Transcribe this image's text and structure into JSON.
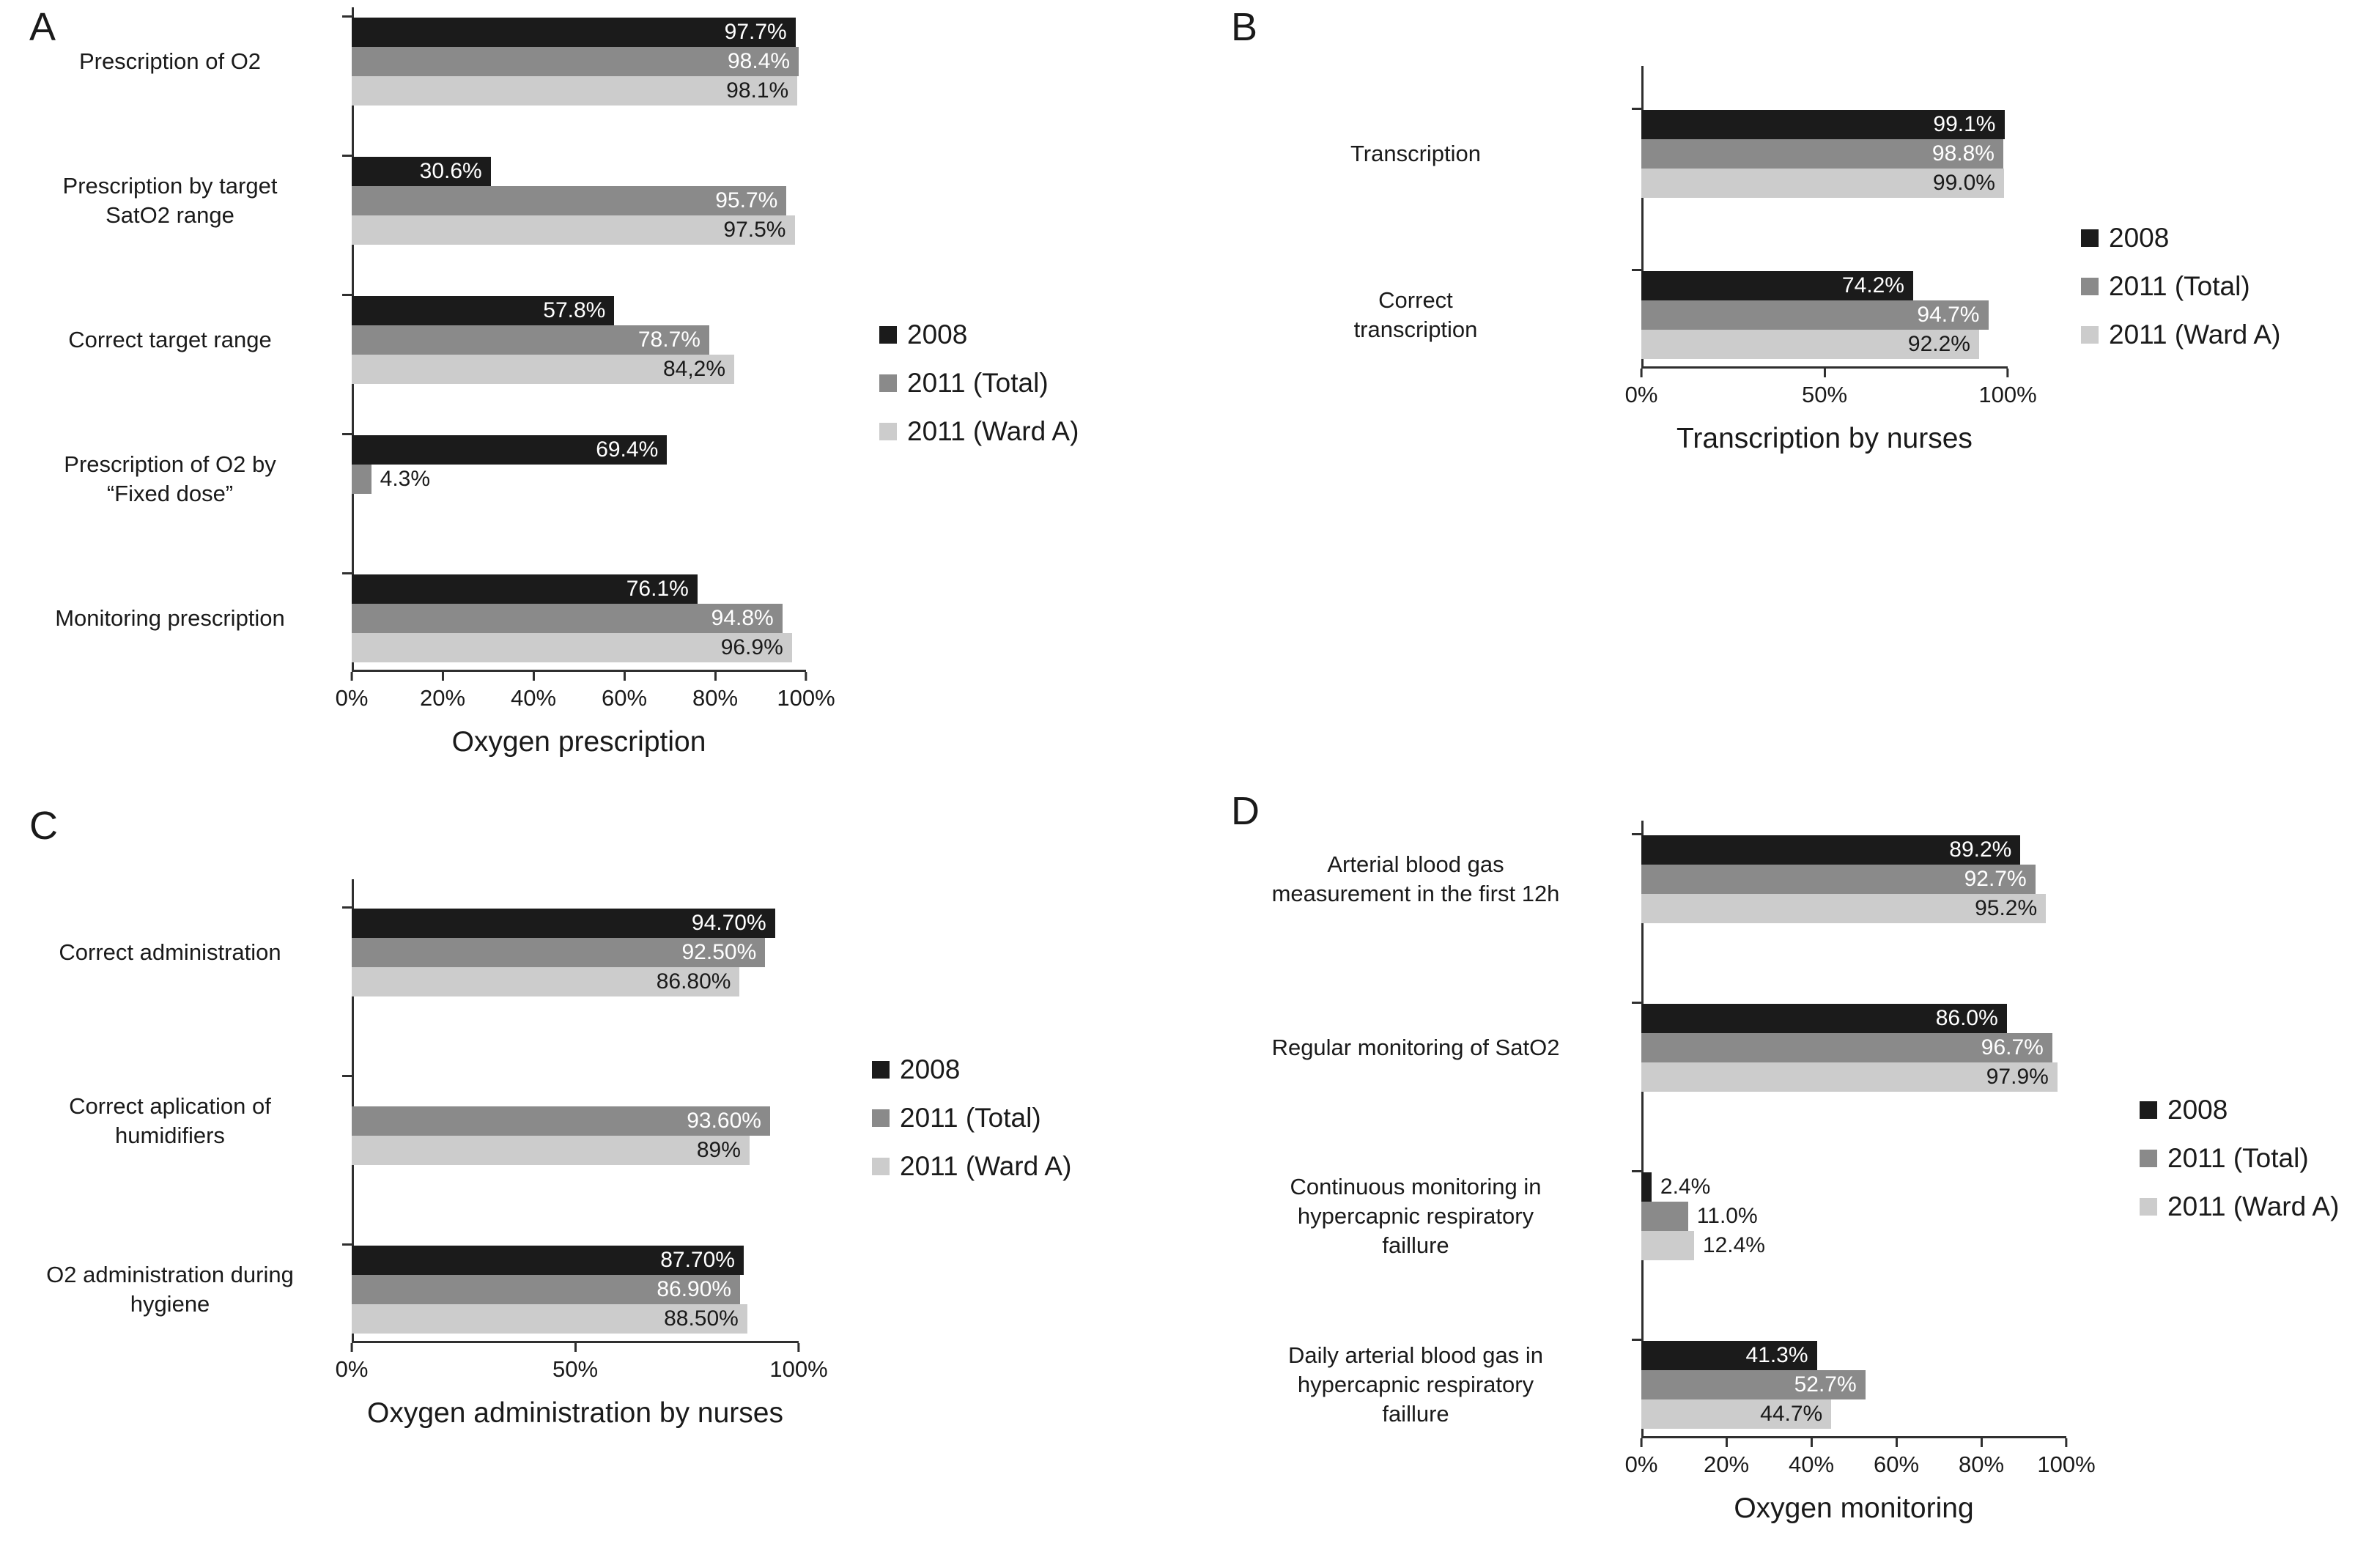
{
  "figure": {
    "background": "#ffffff"
  },
  "legend": {
    "items": [
      {
        "label": "2008",
        "color": "#1b1b1b"
      },
      {
        "label": "2011 (Total)",
        "color": "#8a8a8a"
      },
      {
        "label": "2011 (Ward A)",
        "color": "#cccccc"
      }
    ]
  },
  "chart_data": [
    {
      "id": "A",
      "panel_letter": "A",
      "type": "bar",
      "orientation": "horizontal",
      "title": "",
      "xlabel": "Oxygen prescription",
      "xlim": [
        0,
        100
      ],
      "x_ticks": [
        "0%",
        "20%",
        "40%",
        "60%",
        "80%",
        "100%"
      ],
      "grid": false,
      "legend_position": "right",
      "series_names": [
        "2008",
        "2011 (Total)",
        "2011 (Ward A)"
      ],
      "groups": [
        {
          "category": "Prescription of O2",
          "values": [
            97.7,
            98.4,
            98.1
          ],
          "value_labels": [
            "97.7%",
            "98.4%",
            "98.1%"
          ]
        },
        {
          "category": "Prescription by target\nSatO2 range",
          "values": [
            30.6,
            95.7,
            97.5
          ],
          "value_labels": [
            "30.6%",
            "95.7%",
            "97.5%"
          ]
        },
        {
          "category": "Correct target range",
          "values": [
            57.8,
            78.7,
            84.2
          ],
          "value_labels": [
            "57.8%",
            "78.7%",
            "84,2%"
          ]
        },
        {
          "category": "Prescription of O2 by\n“Fixed dose”",
          "values": [
            69.4,
            4.3,
            null
          ],
          "value_labels": [
            "69.4%",
            "4.3%",
            ""
          ]
        },
        {
          "category": "Monitoring prescription",
          "values": [
            76.1,
            94.8,
            96.9
          ],
          "value_labels": [
            "76.1%",
            "94.8%",
            "96.9%"
          ]
        }
      ]
    },
    {
      "id": "B",
      "panel_letter": "B",
      "type": "bar",
      "orientation": "horizontal",
      "title": "",
      "xlabel": "Transcription by nurses",
      "xlim": [
        0,
        100
      ],
      "x_ticks": [
        "0%",
        "50%",
        "100%"
      ],
      "grid": false,
      "legend_position": "right",
      "series_names": [
        "2008",
        "2011 (Total)",
        "2011 (Ward A)"
      ],
      "groups": [
        {
          "category": "Transcription",
          "values": [
            99.1,
            98.8,
            99.0
          ],
          "value_labels": [
            "99.1%",
            "98.8%",
            "99.0%"
          ]
        },
        {
          "category": "Correct\ntranscription",
          "values": [
            74.2,
            94.7,
            92.2
          ],
          "value_labels": [
            "74.2%",
            "94.7%",
            "92.2%"
          ]
        }
      ]
    },
    {
      "id": "C",
      "panel_letter": "C",
      "type": "bar",
      "orientation": "horizontal",
      "title": "",
      "xlabel": "Oxygen administration by nurses",
      "xlim": [
        0,
        100
      ],
      "x_ticks": [
        "0%",
        "50%",
        "100%"
      ],
      "grid": false,
      "legend_position": "right",
      "series_names": [
        "2008",
        "2011 (Total)",
        "2011 (Ward A)"
      ],
      "groups": [
        {
          "category": "Correct administration",
          "values": [
            94.7,
            92.5,
            86.8
          ],
          "value_labels": [
            "94.70%",
            "92.50%",
            "86.80%"
          ]
        },
        {
          "category": "Correct aplication of\nhumidifiers",
          "values": [
            null,
            93.6,
            89
          ],
          "value_labels": [
            "",
            "93.60%",
            "89%"
          ]
        },
        {
          "category": "O2 administration during\nhygiene",
          "values": [
            87.7,
            86.9,
            88.5
          ],
          "value_labels": [
            "87.70%",
            "86.90%",
            "88.50%"
          ]
        }
      ]
    },
    {
      "id": "D",
      "panel_letter": "D",
      "type": "bar",
      "orientation": "horizontal",
      "title": "",
      "xlabel": "Oxygen monitoring",
      "xlim": [
        0,
        100
      ],
      "x_ticks": [
        "0%",
        "20%",
        "40%",
        "60%",
        "80%",
        "100%"
      ],
      "grid": false,
      "legend_position": "right",
      "series_names": [
        "2008",
        "2011 (Total)",
        "2011 (Ward A)"
      ],
      "groups": [
        {
          "category": "Arterial blood gas\nmeasurement in the first 12h",
          "values": [
            89.2,
            92.7,
            95.2
          ],
          "value_labels": [
            "89.2%",
            "92.7%",
            "95.2%"
          ]
        },
        {
          "category": "Regular monitoring of SatO2",
          "values": [
            86.0,
            96.7,
            97.9
          ],
          "value_labels": [
            "86.0%",
            "96.7%",
            "97.9%"
          ]
        },
        {
          "category": "Continuous monitoring in\nhypercapnic respiratory\nfaillure",
          "values": [
            2.4,
            11.0,
            12.4
          ],
          "value_labels": [
            "2.4%",
            "11.0%",
            "12.4%"
          ]
        },
        {
          "category": "Daily arterial blood gas in\nhypercapnic respiratory\nfaillure",
          "values": [
            41.3,
            52.7,
            44.7
          ],
          "value_labels": [
            "41.3%",
            "52.7%",
            "44.7%"
          ]
        }
      ]
    }
  ]
}
